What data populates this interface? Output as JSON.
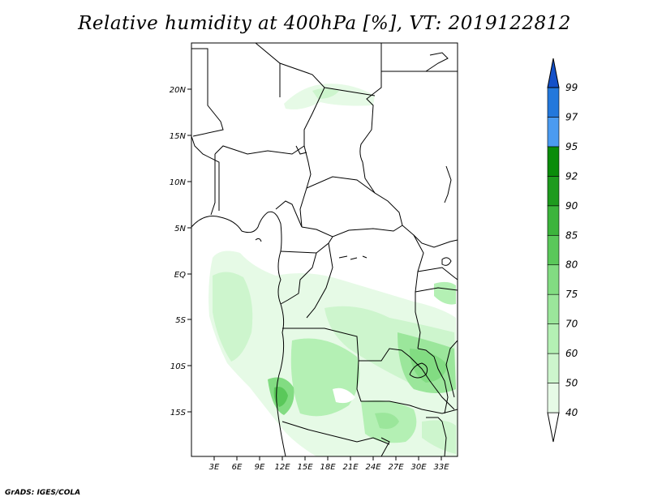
{
  "title": "Relative humidity at 400hPa [%], VT: 2019122812",
  "credit": "GrADS: IGES/COLA",
  "lat_ticks": [
    "20N",
    "15N",
    "10N",
    "5N",
    "EQ",
    "5S",
    "10S",
    "15S"
  ],
  "lon_ticks": [
    "3E",
    "6E",
    "9E",
    "12E",
    "15E",
    "18E",
    "21E",
    "24E",
    "27E",
    "30E",
    "33E"
  ],
  "colorbar": {
    "levels": [
      "40",
      "50",
      "60",
      "70",
      "75",
      "80",
      "85",
      "90",
      "92",
      "95",
      "97",
      "99"
    ],
    "colors": [
      "#ffffff",
      "#e6fae6",
      "#cdf5cd",
      "#b4f0b4",
      "#9be69b",
      "#82dc82",
      "#5ac85a",
      "#3cb43c",
      "#1e9b1e",
      "#0a8c0a",
      "#4b9bf0",
      "#2378dc",
      "#1450c8"
    ]
  }
}
